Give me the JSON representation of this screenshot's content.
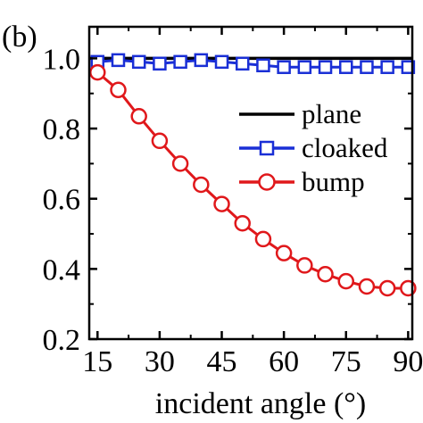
{
  "panel_label": "(b)",
  "chart_data": {
    "type": "line",
    "title": "",
    "xlabel": "incident angle (°)",
    "ylabel": "",
    "xlim": [
      13,
      91
    ],
    "ylim": [
      0.2,
      1.09
    ],
    "xticks": [
      15,
      30,
      45,
      60,
      75,
      90
    ],
    "yticks": [
      0.2,
      0.4,
      0.6,
      0.8,
      1.0
    ],
    "xtick_labels": [
      "15",
      "30",
      "45",
      "60",
      "75",
      "90"
    ],
    "ytick_labels": [
      "0.2",
      "0.4",
      "0.6",
      "0.8",
      "1.0"
    ],
    "grid": false,
    "legend_position": "right",
    "x": [
      15,
      20,
      25,
      30,
      35,
      40,
      45,
      50,
      55,
      60,
      65,
      70,
      75,
      80,
      85,
      90
    ],
    "series": [
      {
        "name": "plane",
        "color": "#000000",
        "marker": "none",
        "values": [
          1.0,
          1.0,
          1.0,
          1.0,
          1.0,
          1.0,
          1.0,
          1.0,
          1.0,
          1.0,
          1.0,
          1.0,
          1.0,
          1.0,
          1.0,
          1.0
        ]
      },
      {
        "name": "cloaked",
        "color": "#1a2fd6",
        "marker": "square",
        "values": [
          0.99,
          0.995,
          0.99,
          0.985,
          0.99,
          0.995,
          0.99,
          0.985,
          0.98,
          0.975,
          0.975,
          0.975,
          0.975,
          0.975,
          0.975,
          0.975
        ]
      },
      {
        "name": "bump",
        "color": "#e0181b",
        "marker": "circle",
        "values": [
          0.96,
          0.91,
          0.835,
          0.765,
          0.7,
          0.64,
          0.585,
          0.53,
          0.485,
          0.445,
          0.41,
          0.385,
          0.365,
          0.35,
          0.345,
          0.345
        ]
      }
    ]
  }
}
